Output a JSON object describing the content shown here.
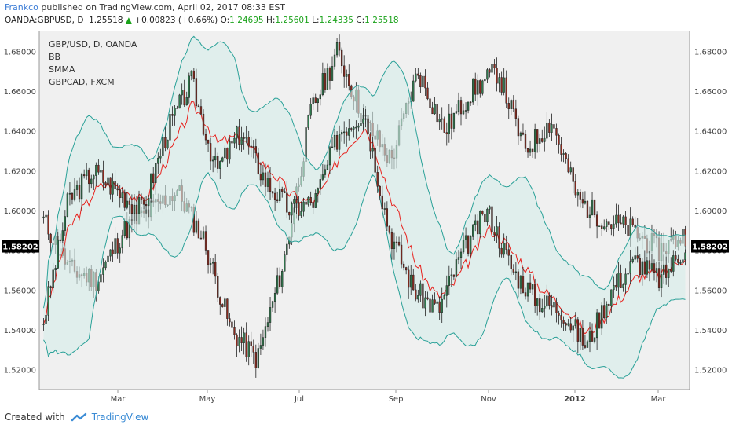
{
  "header": {
    "author": "Frankco",
    "published": "published on TradingView.com, April 02, 2017 08:33 EST",
    "symbol": "OANDA:GBPUSD, D",
    "last": "1.25518",
    "arrow": "▲",
    "change": "+0.00823 (+0.66%)",
    "o_label": "O:",
    "o": "1.24695",
    "h_label": "H:",
    "h": "1.25601",
    "l_label": "L:",
    "l": "1.24335",
    "c_label": "C:",
    "c": "1.25518"
  },
  "legend": [
    "GBP/USD, D, OANDA",
    "BB",
    "SMMA",
    "GBPCAD, FXCM"
  ],
  "footer": {
    "created_with": "Created with",
    "brand": "TradingView"
  },
  "colors": {
    "plot_bg": "#f0f0f0",
    "up": "#2f7a4d",
    "down": "#8b2a1e",
    "band": "#2aa198",
    "band_fill": "#d6ecea",
    "smma": "#e8211d",
    "price_label_bg": "#000000"
  },
  "chart_data": {
    "type": "candlestick",
    "title": "GBP/USD, D, OANDA",
    "ylim": [
      1.51,
      1.69
    ],
    "y_ticks": [
      "1.68000",
      "1.66000",
      "1.64000",
      "1.62000",
      "1.60000",
      "1.58000",
      "1.56000",
      "1.54000",
      "1.52000"
    ],
    "x_ticks": [
      "Mar",
      "May",
      "Jul",
      "Sep",
      "Nov",
      "2012",
      "Mar"
    ],
    "current_price_label": "1.58202",
    "current_price": 1.58202,
    "series": [
      {
        "name": "GBP/USD, D, OANDA",
        "approx_path": [
          {
            "x": "Feb",
            "y": 1.545
          },
          {
            "x": "Feb",
            "y": 1.605
          },
          {
            "x": "Mar",
            "y": 1.62
          },
          {
            "x": "Mar",
            "y": 1.61
          },
          {
            "x": "Apr",
            "y": 1.6
          },
          {
            "x": "Apr",
            "y": 1.64
          },
          {
            "x": "May",
            "y": 1.665
          },
          {
            "x": "May",
            "y": 1.62
          },
          {
            "x": "Jun",
            "y": 1.64
          },
          {
            "x": "Jun",
            "y": 1.615
          },
          {
            "x": "Jul",
            "y": 1.6
          },
          {
            "x": "Jul",
            "y": 1.605
          },
          {
            "x": "Aug",
            "y": 1.64
          },
          {
            "x": "Aug",
            "y": 1.65
          },
          {
            "x": "Sep",
            "y": 1.59
          },
          {
            "x": "Sep",
            "y": 1.56
          },
          {
            "x": "Oct",
            "y": 1.55
          },
          {
            "x": "Oct",
            "y": 1.58
          },
          {
            "x": "Nov",
            "y": 1.6
          },
          {
            "x": "Nov",
            "y": 1.57
          },
          {
            "x": "Dec",
            "y": 1.555
          },
          {
            "x": "Dec",
            "y": 1.55
          },
          {
            "x": "2012",
            "y": 1.532
          },
          {
            "x": "Jan",
            "y": 1.56
          },
          {
            "x": "Feb",
            "y": 1.575
          },
          {
            "x": "Mar",
            "y": 1.565
          },
          {
            "x": "Mar",
            "y": 1.582
          }
        ]
      },
      {
        "name": "GBPCAD, FXCM",
        "approx_path": [
          {
            "x": "Feb",
            "y": 1.595
          },
          {
            "x": "Mar",
            "y": 1.57
          },
          {
            "x": "Apr",
            "y": 1.565
          },
          {
            "x": "Apr",
            "y": 1.59
          },
          {
            "x": "May",
            "y": 1.6
          },
          {
            "x": "Jun",
            "y": 1.61
          },
          {
            "x": "Jun",
            "y": 1.585
          },
          {
            "x": "Jul",
            "y": 1.54
          },
          {
            "x": "Jul",
            "y": 1.525
          },
          {
            "x": "Aug",
            "y": 1.575
          },
          {
            "x": "Aug",
            "y": 1.65
          },
          {
            "x": "Aug",
            "y": 1.68
          },
          {
            "x": "Sep",
            "y": 1.645
          },
          {
            "x": "Sep",
            "y": 1.625
          },
          {
            "x": "Oct",
            "y": 1.67
          },
          {
            "x": "Oct",
            "y": 1.64
          },
          {
            "x": "Nov",
            "y": 1.66
          },
          {
            "x": "Nov",
            "y": 1.67
          },
          {
            "x": "Dec",
            "y": 1.63
          },
          {
            "x": "Dec",
            "y": 1.645
          },
          {
            "x": "2012",
            "y": 1.605
          },
          {
            "x": "Jan",
            "y": 1.595
          },
          {
            "x": "Feb",
            "y": 1.59
          },
          {
            "x": "Mar",
            "y": 1.58
          },
          {
            "x": "Mar",
            "y": 1.588
          }
        ]
      }
    ],
    "indicators": [
      "BB",
      "SMMA"
    ],
    "grid": false
  }
}
